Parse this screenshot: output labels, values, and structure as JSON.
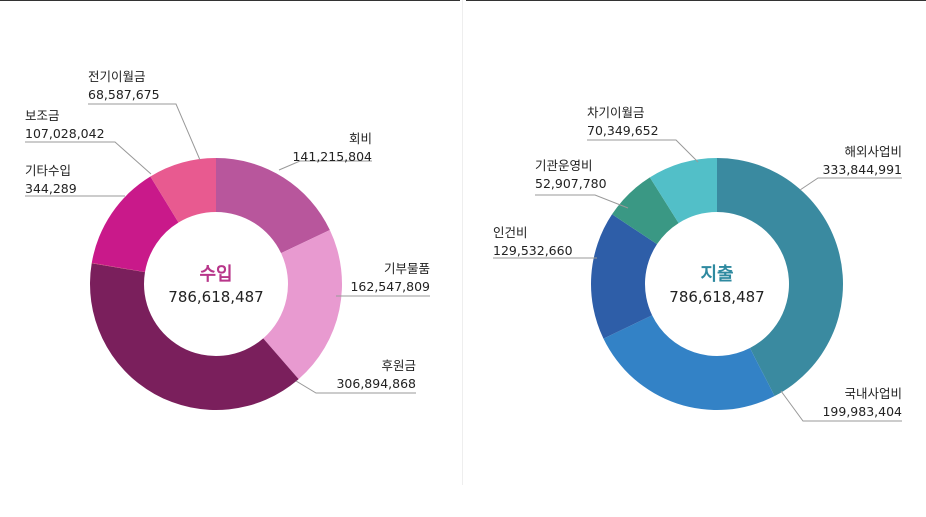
{
  "chart_data": [
    {
      "type": "pie",
      "center_title": "수입",
      "center_total": "786,618,487",
      "title_color": "#b8368a",
      "slices": [
        {
          "name": "회비",
          "value": 141215804,
          "label": "141,215,804",
          "color": "#b8569c"
        },
        {
          "name": "기부물품",
          "value": 162547809,
          "label": "162,547,809",
          "color": "#e89ad0"
        },
        {
          "name": "후원금",
          "value": 306894868,
          "label": "306,894,868",
          "color": "#7a1f5c"
        },
        {
          "name": "기타수입",
          "value": 344289,
          "label": "344,289",
          "color": "#d83a55"
        },
        {
          "name": "보조금",
          "value": 107028042,
          "label": "107,028,042",
          "color": "#c9198a"
        },
        {
          "name": "전기이월금",
          "value": 68587675,
          "label": "68,587,675",
          "color": "#e85a90"
        }
      ]
    },
    {
      "type": "pie",
      "center_title": "지출",
      "center_total": "786,618,487",
      "title_color": "#2f8aa0",
      "slices": [
        {
          "name": "해외사업비",
          "value": 333844991,
          "label": "333,844,991",
          "color": "#3a8aa0"
        },
        {
          "name": "국내사업비",
          "value": 199983404,
          "label": "199,983,404",
          "color": "#3382c6"
        },
        {
          "name": "인건비",
          "value": 129532660,
          "label": "129,532,660",
          "color": "#2e5ea8"
        },
        {
          "name": "기관운영비",
          "value": 52907780,
          "label": "52,907,780",
          "color": "#3a9884"
        },
        {
          "name": "차기이월금",
          "value": 70349652,
          "label": "70,349,652",
          "color": "#52bfc8"
        }
      ]
    }
  ]
}
